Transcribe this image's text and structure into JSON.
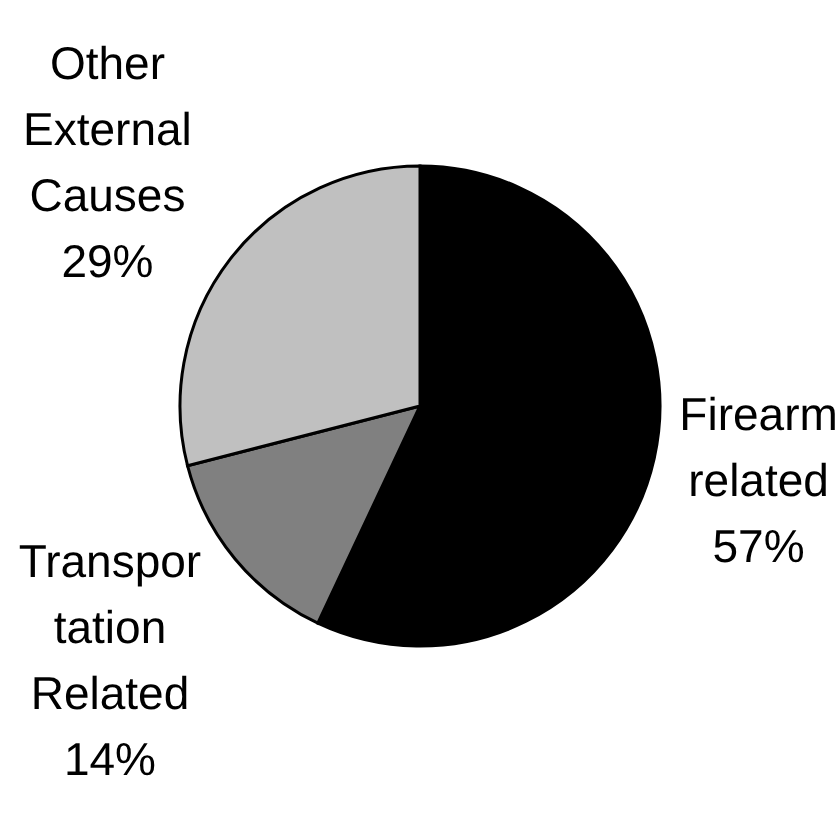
{
  "chart_data": {
    "type": "pie",
    "categories": [
      "Firearm related",
      "Transportation Related",
      "Other External Causes"
    ],
    "values": [
      57,
      14,
      29
    ],
    "colors": [
      "#000000",
      "#808080",
      "#c0c0c0"
    ],
    "value_labels": [
      "57%",
      "14%",
      "29%"
    ]
  }
}
